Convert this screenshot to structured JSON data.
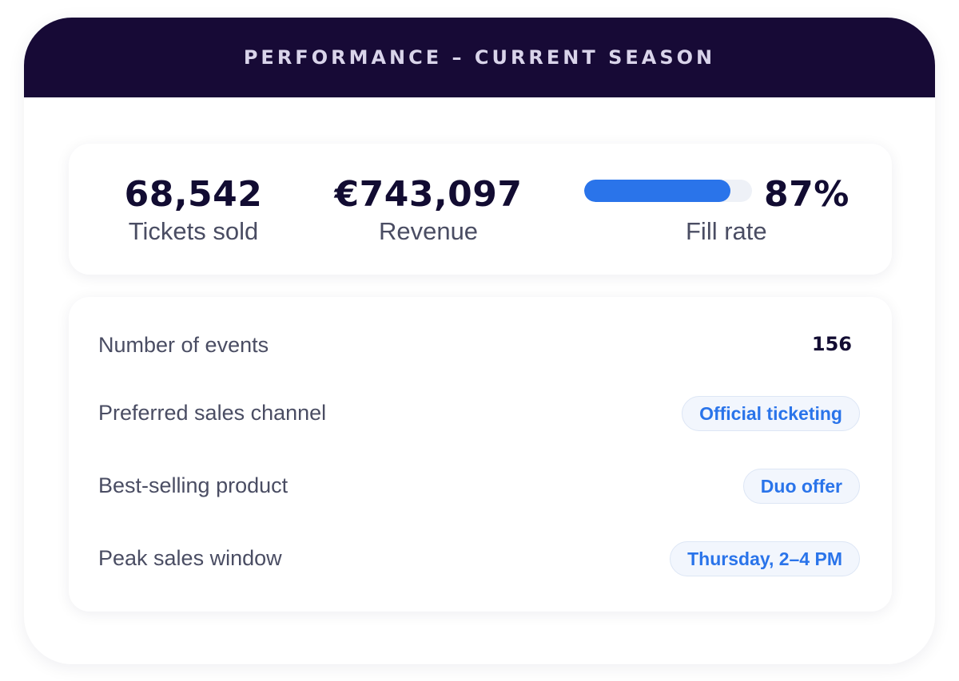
{
  "header": {
    "title": "PERFORMANCE – CURRENT SEASON"
  },
  "stats": {
    "tickets": {
      "value": "68,542",
      "label": "Tickets sold"
    },
    "revenue": {
      "value": "€743,097",
      "label": "Revenue"
    },
    "fill_rate": {
      "value": "87%",
      "label": "Fill rate",
      "progress_percent": 87
    }
  },
  "details": [
    {
      "label": "Number of events",
      "value": "156",
      "style": "plain"
    },
    {
      "label": "Preferred sales channel",
      "value": "Official ticketing",
      "style": "pill"
    },
    {
      "label": "Best-selling product",
      "value": "Duo offer",
      "style": "pill"
    },
    {
      "label": "Peak sales window",
      "value": "Thursday, 2–4 PM",
      "style": "pill"
    }
  ],
  "colors": {
    "header_background": "#170a36",
    "accent": "#2a74ea",
    "pill_background": "#f2f6fd",
    "value_text": "#120c32",
    "label_text": "#4a4d63"
  }
}
